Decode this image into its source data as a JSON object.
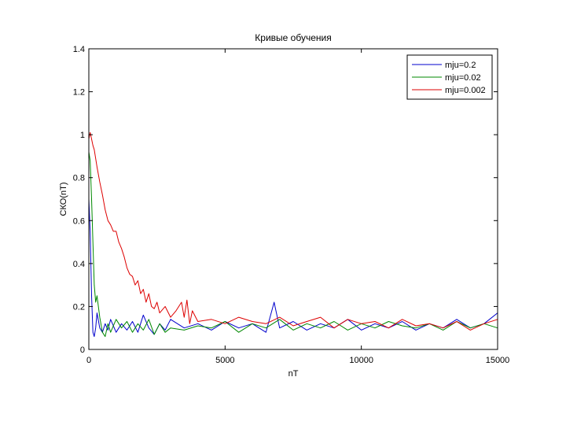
{
  "chart_data": {
    "type": "line",
    "title": "Кривые обучения",
    "xlabel": "nT",
    "ylabel": "СКО(nT)",
    "xlim": [
      0,
      15000
    ],
    "ylim": [
      0,
      1.4
    ],
    "xticks": [
      0,
      5000,
      10000,
      15000
    ],
    "xtick_labels": [
      "0",
      "5000",
      "10000",
      "15000"
    ],
    "yticks": [
      0,
      0.2,
      0.4,
      0.6,
      0.8,
      1,
      1.2,
      1.4
    ],
    "ytick_labels": [
      "0",
      "0.2",
      "0.4",
      "0.6",
      "0.8",
      "1",
      "1.2",
      "1.4"
    ],
    "grid": false,
    "legend_position": "top-right",
    "series": [
      {
        "name": "mju=0.2",
        "color": "#0000cc",
        "x": [
          0,
          50,
          100,
          150,
          200,
          250,
          300,
          400,
          500,
          600,
          700,
          800,
          1000,
          1200,
          1400,
          1600,
          1800,
          2000,
          2200,
          2400,
          2600,
          2800,
          3000,
          3500,
          4000,
          4500,
          5000,
          5500,
          6000,
          6500,
          6800,
          7000,
          7500,
          8000,
          8500,
          9000,
          9500,
          10000,
          10500,
          11000,
          11500,
          12000,
          12500,
          13000,
          13500,
          14000,
          14500,
          15000
        ],
        "y": [
          0.7,
          0.55,
          0.25,
          0.08,
          0.06,
          0.1,
          0.17,
          0.1,
          0.08,
          0.12,
          0.09,
          0.14,
          0.08,
          0.12,
          0.09,
          0.13,
          0.08,
          0.16,
          0.1,
          0.07,
          0.12,
          0.09,
          0.14,
          0.1,
          0.12,
          0.09,
          0.13,
          0.1,
          0.12,
          0.08,
          0.22,
          0.1,
          0.13,
          0.09,
          0.12,
          0.1,
          0.14,
          0.09,
          0.12,
          0.1,
          0.13,
          0.09,
          0.12,
          0.1,
          0.14,
          0.1,
          0.12,
          0.17
        ]
      },
      {
        "name": "mju=0.02",
        "color": "#008800",
        "x": [
          0,
          50,
          100,
          150,
          200,
          250,
          300,
          400,
          500,
          600,
          700,
          800,
          1000,
          1200,
          1400,
          1600,
          1800,
          2000,
          2200,
          2400,
          2600,
          2800,
          3000,
          3500,
          4000,
          4500,
          5000,
          5500,
          6000,
          6500,
          7000,
          7500,
          8000,
          8500,
          9000,
          9500,
          10000,
          10500,
          11000,
          11500,
          12000,
          12500,
          13000,
          13500,
          14000,
          14500,
          15000
        ],
        "y": [
          0.92,
          0.88,
          0.7,
          0.5,
          0.3,
          0.22,
          0.25,
          0.15,
          0.08,
          0.06,
          0.12,
          0.08,
          0.14,
          0.1,
          0.13,
          0.08,
          0.12,
          0.09,
          0.14,
          0.07,
          0.12,
          0.08,
          0.1,
          0.09,
          0.11,
          0.1,
          0.13,
          0.08,
          0.12,
          0.1,
          0.14,
          0.09,
          0.12,
          0.1,
          0.13,
          0.09,
          0.12,
          0.1,
          0.13,
          0.11,
          0.1,
          0.12,
          0.09,
          0.13,
          0.1,
          0.12,
          0.1
        ]
      },
      {
        "name": "mju=0.002",
        "color": "#dd0000",
        "x": [
          0,
          50,
          100,
          150,
          200,
          300,
          400,
          500,
          600,
          700,
          800,
          900,
          1000,
          1100,
          1200,
          1300,
          1400,
          1500,
          1600,
          1700,
          1800,
          1900,
          2000,
          2100,
          2200,
          2300,
          2400,
          2500,
          2600,
          2800,
          3000,
          3200,
          3400,
          3500,
          3600,
          3700,
          3800,
          4000,
          4500,
          5000,
          5500,
          6000,
          6500,
          7000,
          7500,
          8000,
          8500,
          9000,
          9500,
          10000,
          10500,
          11000,
          11500,
          12000,
          12500,
          13000,
          13500,
          14000,
          14500,
          15000
        ],
        "y": [
          0.98,
          1.01,
          0.98,
          0.95,
          0.93,
          0.85,
          0.78,
          0.72,
          0.65,
          0.6,
          0.58,
          0.55,
          0.55,
          0.5,
          0.47,
          0.43,
          0.38,
          0.35,
          0.34,
          0.3,
          0.32,
          0.26,
          0.28,
          0.22,
          0.26,
          0.2,
          0.19,
          0.22,
          0.17,
          0.2,
          0.15,
          0.18,
          0.22,
          0.15,
          0.23,
          0.12,
          0.18,
          0.13,
          0.14,
          0.12,
          0.15,
          0.13,
          0.12,
          0.15,
          0.11,
          0.13,
          0.15,
          0.1,
          0.14,
          0.12,
          0.13,
          0.1,
          0.14,
          0.11,
          0.12,
          0.1,
          0.13,
          0.09,
          0.12,
          0.14
        ]
      }
    ]
  }
}
